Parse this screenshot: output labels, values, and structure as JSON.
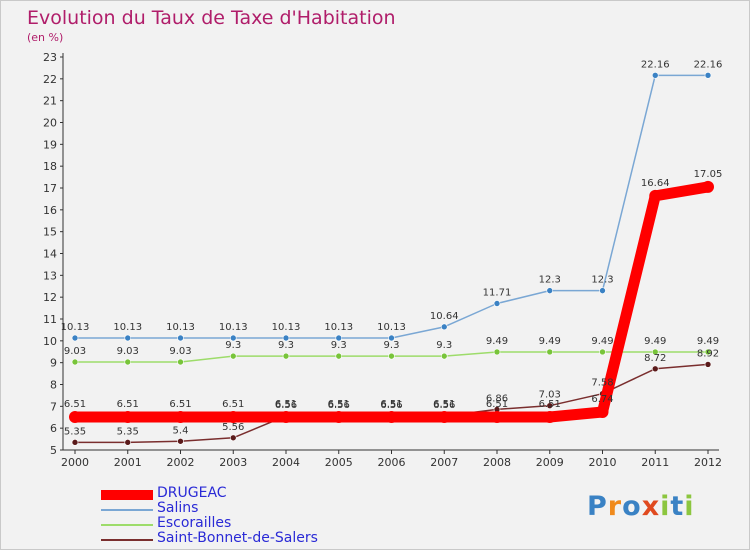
{
  "title": "Evolution du Taux de Taxe d'Habitation",
  "unit_label": "(en %)",
  "logo": {
    "text": "Proxiti",
    "colors": [
      "#3a82c4",
      "#f08a1c",
      "#3a82c4",
      "#e04a1f",
      "#8cc63f",
      "#3a82c4",
      "#8cc63f"
    ]
  },
  "colors": {
    "background": "#f2f2f2",
    "axis": "#333333",
    "grid_tick": "#cc0000",
    "legend_text": "#2a2ad6",
    "title": "#b01d6a"
  },
  "chart_data": {
    "type": "line",
    "title": "Evolution du Taux de Taxe d'Habitation",
    "ylabel": "(en %)",
    "xlabel": "",
    "x": [
      "2000",
      "2001",
      "2002",
      "2003",
      "2004",
      "2005",
      "2006",
      "2007",
      "2008",
      "2009",
      "2010",
      "2011",
      "2012"
    ],
    "ylim": [
      5,
      23
    ],
    "yticks": [
      5,
      6,
      7,
      8,
      9,
      10,
      11,
      12,
      13,
      14,
      15,
      16,
      17,
      18,
      19,
      20,
      21,
      22,
      23
    ],
    "legend_position": "bottom-left",
    "series": [
      {
        "name": "DRUGEAC",
        "color": "#ff0000",
        "marker": "#ff0000",
        "width": 11,
        "values": [
          6.51,
          6.51,
          6.51,
          6.51,
          6.51,
          6.51,
          6.51,
          6.51,
          6.51,
          6.51,
          6.74,
          16.64,
          17.05
        ],
        "labels": [
          "6.51",
          "6.51",
          "6.51",
          "6.51",
          "6.51",
          "6.51",
          "6.51",
          "6.51",
          "6.51",
          "6.51",
          "6.74",
          "16.64",
          "17.05"
        ],
        "label_pos": "above"
      },
      {
        "name": "Salins",
        "color": "#7aa7d4",
        "marker": "#3b82c4",
        "width": 1.5,
        "values": [
          10.13,
          10.13,
          10.13,
          10.13,
          10.13,
          10.13,
          10.13,
          10.64,
          11.71,
          12.3,
          12.3,
          22.16,
          22.16
        ],
        "labels": [
          "10.13",
          "10.13",
          "10.13",
          "10.13",
          "10.13",
          "10.13",
          "10.13",
          "10.64",
          "11.71",
          "12.3",
          "12.3",
          "22.16",
          "22.16"
        ],
        "label_pos": "above"
      },
      {
        "name": "Escorailles",
        "color": "#9ddc6a",
        "marker": "#78c43a",
        "width": 1.5,
        "values": [
          9.03,
          9.03,
          9.03,
          9.3,
          9.3,
          9.3,
          9.3,
          9.3,
          9.49,
          9.49,
          9.49,
          9.49,
          9.49
        ],
        "labels": [
          "9.03",
          "9.03",
          "9.03",
          "9.3",
          "9.3",
          "9.3",
          "9.3",
          "9.3",
          "9.49",
          "9.49",
          "9.49",
          "9.49",
          "9.49"
        ],
        "label_pos": "above"
      },
      {
        "name": "Saint-Bonnet-de-Salers",
        "color": "#7a2e2e",
        "marker": "#5a1a1a",
        "width": 1.5,
        "values": [
          5.35,
          5.35,
          5.4,
          5.56,
          6.56,
          6.56,
          6.56,
          6.56,
          6.86,
          7.03,
          7.58,
          8.72,
          8.92
        ],
        "labels": [
          "5.35",
          "5.35",
          "5.4",
          "5.56",
          "6.56",
          "6.56",
          "6.56",
          "6.56",
          "6.86",
          "7.03",
          "7.58",
          "8.72",
          "8.92"
        ],
        "label_pos": "above"
      }
    ]
  }
}
